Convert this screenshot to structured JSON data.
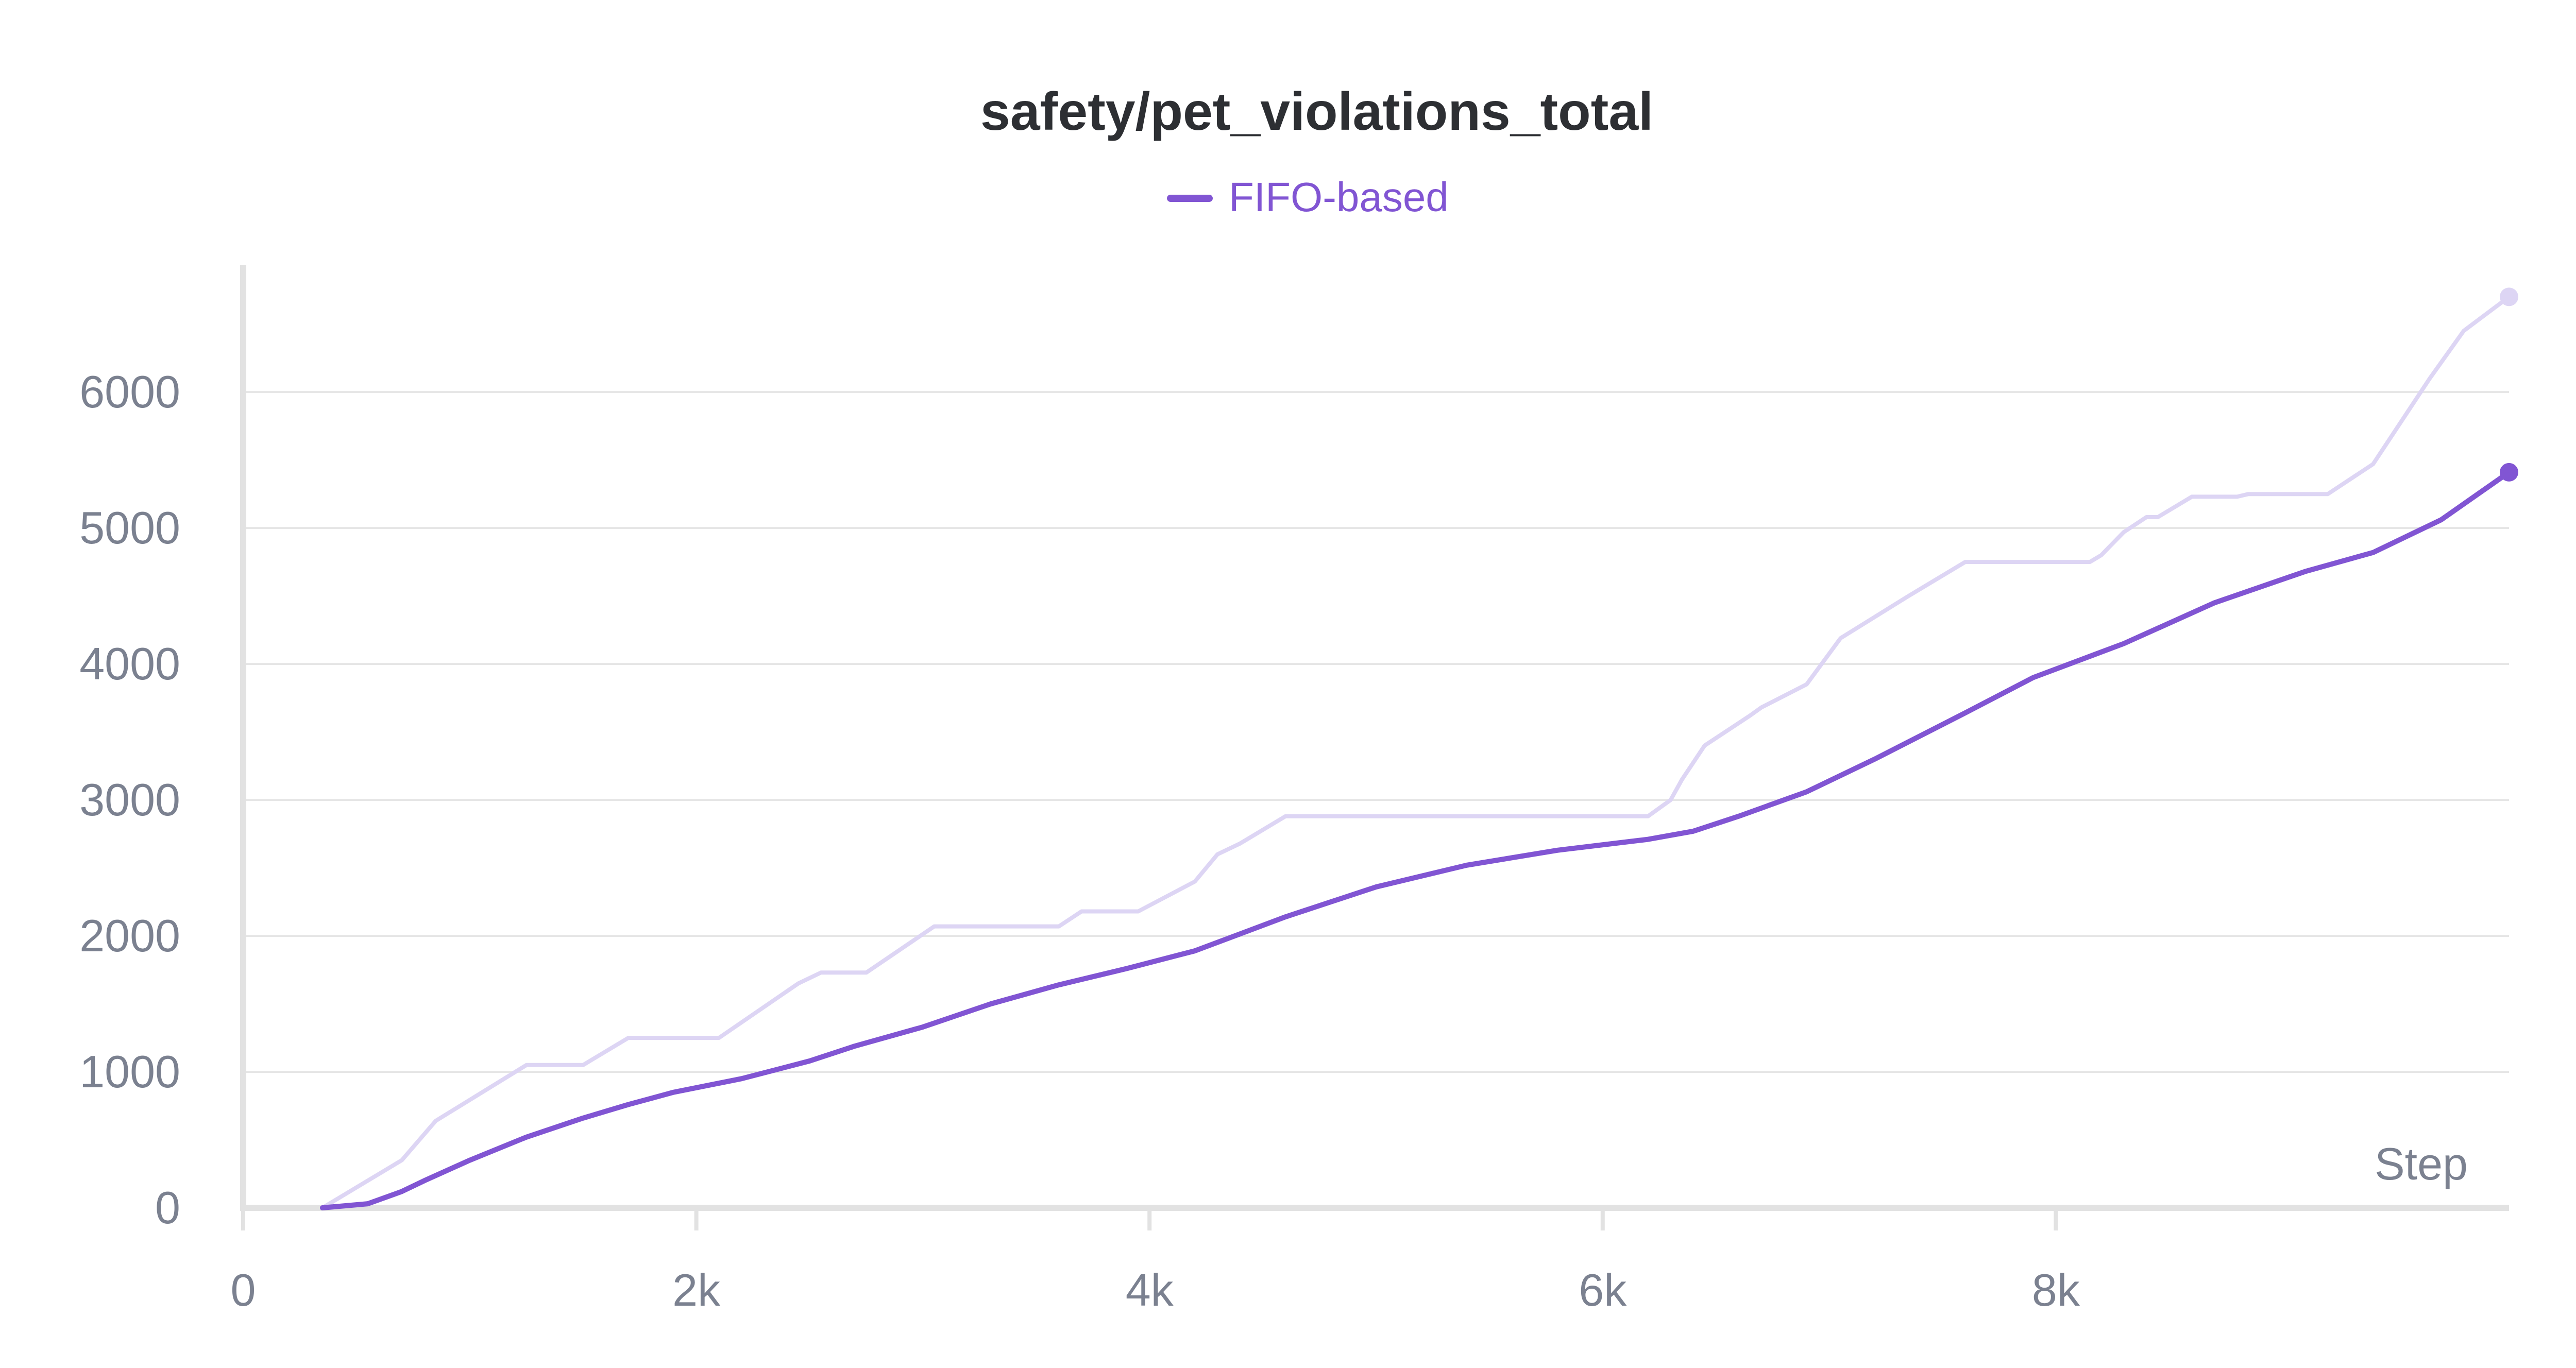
{
  "chart_data": {
    "type": "line",
    "title": "safety/pet_violations_total",
    "xlabel": "Step",
    "ylabel": "",
    "xlim": [
      0,
      10000
    ],
    "ylim": [
      0,
      6800
    ],
    "x_ticks": [
      0,
      2000,
      4000,
      6000,
      8000
    ],
    "x_tick_labels": [
      "0",
      "2k",
      "4k",
      "6k",
      "8k"
    ],
    "y_ticks": [
      0,
      1000,
      2000,
      3000,
      4000,
      5000,
      6000
    ],
    "y_tick_labels": [
      "0",
      "1000",
      "2000",
      "3000",
      "4000",
      "5000",
      "6000"
    ],
    "grid": true,
    "legend_position": "top-center",
    "colors": {
      "smoothed": "#8155d3",
      "raw": "#ddd5f4",
      "grid": "#e6e6e6",
      "axis": "#e2e2e2",
      "tick_text": "#7b8190",
      "title_text": "#2d2f33"
    },
    "series": [
      {
        "name": "FIFO-based",
        "kind": "smoothed",
        "x": [
          350,
          550,
          700,
          800,
          1000,
          1250,
          1500,
          1700,
          1900,
          2200,
          2500,
          2700,
          3000,
          3300,
          3600,
          3900,
          4200,
          4600,
          5000,
          5400,
          5800,
          6200,
          6400,
          6600,
          6900,
          7200,
          7600,
          7900,
          8300,
          8700,
          9100,
          9400,
          9700,
          10000
        ],
        "y": [
          0,
          30,
          120,
          200,
          350,
          520,
          660,
          760,
          850,
          950,
          1080,
          1190,
          1330,
          1500,
          1640,
          1760,
          1890,
          2140,
          2360,
          2520,
          2630,
          2710,
          2770,
          2880,
          3060,
          3300,
          3640,
          3900,
          4150,
          4450,
          4680,
          4820,
          5060,
          5410
        ]
      },
      {
        "name": "",
        "kind": "raw",
        "x": [
          350,
          550,
          700,
          850,
          1250,
          1500,
          1700,
          2100,
          2450,
          2550,
          2750,
          3050,
          3600,
          3700,
          3950,
          4200,
          4300,
          4400,
          4600,
          5400,
          5900,
          6200,
          6300,
          6350,
          6450,
          6650,
          6700,
          6900,
          7050,
          7350,
          7600,
          8150,
          8200,
          8300,
          8400,
          8450,
          8600,
          8800,
          8850,
          9200,
          9400,
          9650,
          9800,
          10000
        ],
        "y": [
          0,
          200,
          350,
          640,
          1050,
          1050,
          1250,
          1250,
          1650,
          1730,
          1730,
          2070,
          2070,
          2180,
          2180,
          2400,
          2600,
          2680,
          2880,
          2880,
          2880,
          2880,
          3000,
          3150,
          3400,
          3620,
          3680,
          3850,
          4190,
          4500,
          4750,
          4750,
          4800,
          4970,
          5080,
          5080,
          5230,
          5230,
          5250,
          5250,
          5470,
          6100,
          6450,
          6700
        ]
      }
    ]
  }
}
